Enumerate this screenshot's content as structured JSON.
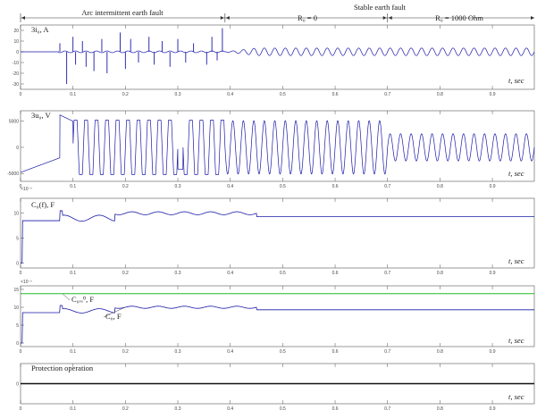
{
  "chart_data": {
    "type": "line",
    "header": {
      "left": "Arc intermittent earth fault",
      "top_right": "Stable earth fault",
      "mid": "R₀ = 0",
      "right": "R₀ = 1000 Ohm",
      "boundaries": [
        0.39,
        0.7
      ]
    },
    "x_axis_label": "t, sec",
    "xlim": [
      0,
      0.98
    ],
    "x_ticks": [
      "0",
      "0.1",
      "0.2",
      "0.3",
      "0.4",
      "0.5",
      "0.6",
      "0.7",
      "0.8",
      "0.9"
    ],
    "panels": [
      {
        "id": "i0",
        "ylabel": "3i₀, A",
        "ylim": [
          -35,
          25
        ],
        "yticks": [
          "20",
          "10",
          "0",
          "-10",
          "-20",
          "-30"
        ],
        "ytick_values": [
          20,
          10,
          0,
          -10,
          -20,
          -30
        ],
        "color": "#1a1aa8",
        "arc_spikes": [
          [
            0.075,
            8
          ],
          [
            0.088,
            -30
          ],
          [
            0.1,
            14
          ],
          [
            0.105,
            -12
          ],
          [
            0.118,
            10
          ],
          [
            0.125,
            -14
          ],
          [
            0.14,
            -18
          ],
          [
            0.155,
            12
          ],
          [
            0.165,
            -20
          ],
          [
            0.19,
            18
          ],
          [
            0.2,
            -16
          ],
          [
            0.21,
            12
          ],
          [
            0.225,
            -10
          ],
          [
            0.245,
            14
          ],
          [
            0.255,
            -12
          ],
          [
            0.27,
            10
          ],
          [
            0.285,
            -14
          ],
          [
            0.3,
            12
          ],
          [
            0.315,
            -10
          ],
          [
            0.33,
            8
          ],
          [
            0.355,
            -12
          ],
          [
            0.365,
            14
          ],
          [
            0.375,
            -8
          ],
          [
            0.385,
            22
          ]
        ],
        "stable_amplitude": 3.5,
        "stable_frequency_hz": 50
      },
      {
        "id": "u0",
        "ylabel": "3u₀, V",
        "ylim": [
          -6500,
          7000
        ],
        "yticks": [
          "5000",
          "0",
          "-5000"
        ],
        "ytick_values": [
          5000,
          0,
          -5000
        ],
        "color": "#1a1aa8",
        "pre_fault_start": -4800,
        "pre_fault_end": -2000,
        "peak_after_fault": 6200,
        "amplitude_arc": 5200,
        "amplitude_r0": 5100,
        "amplitude_r1000": 2600,
        "frequency_hz": 50
      },
      {
        "id": "c0",
        "ylabel": "C₀(f), F",
        "exponent": "×10⁻⁷",
        "ylim": [
          -1,
          13
        ],
        "yticks": [
          "10",
          "5",
          "0"
        ],
        "ytick_values": [
          10,
          5,
          0
        ],
        "color": "#1a1aa8",
        "steady_before": 8.5,
        "steady_after": 9.3,
        "bump_peak": 10.0
      },
      {
        "id": "c0est",
        "ylabel": "",
        "exponent": "×10⁻⁷",
        "ylim": [
          -1,
          16
        ],
        "yticks": [
          "15",
          "10",
          "5",
          "0"
        ],
        "ytick_values": [
          15,
          10,
          5,
          0
        ],
        "reference_label": "C₀ᵣₑ⁰, F",
        "reference_value": 13.8,
        "reference_color": "#22bb22",
        "estimate_label": "C₀, F",
        "estimate_color": "#1a1aa8",
        "steady_before": 8.5,
        "steady_after": 9.3,
        "bump_peak": 10.0
      },
      {
        "id": "prot",
        "ylabel": "Protection operation",
        "ylim": [
          -1,
          1
        ],
        "yticks": [
          "0"
        ],
        "ytick_values": [
          0
        ],
        "color": "#111111",
        "value": 0
      }
    ]
  }
}
